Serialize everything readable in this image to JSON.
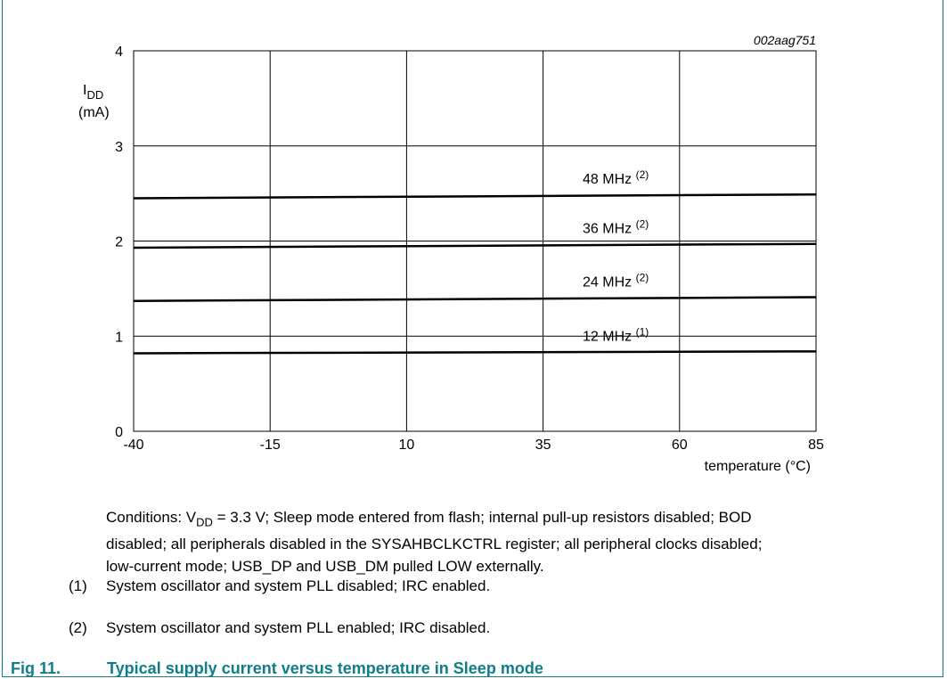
{
  "chart_data": {
    "type": "line",
    "id_label": "002aag751",
    "ylabel_main": "I",
    "ylabel_sub": "DD",
    "ylabel_unit": "(mA)",
    "xlabel": "temperature (°C)",
    "xlim": [
      -40,
      85
    ],
    "ylim": [
      0,
      4
    ],
    "x_ticks": [
      -40,
      -15,
      10,
      35,
      60,
      85
    ],
    "y_ticks": [
      0,
      1,
      2,
      3,
      4
    ],
    "grid": true,
    "series": [
      {
        "name": "48 MHz",
        "note": "(2)",
        "x": [
          -40,
          85
        ],
        "y": [
          2.45,
          2.49
        ]
      },
      {
        "name": "36 MHz",
        "note": "(2)",
        "x": [
          -40,
          85
        ],
        "y": [
          1.93,
          1.97
        ]
      },
      {
        "name": "24 MHz",
        "note": "(2)",
        "x": [
          -40,
          85
        ],
        "y": [
          1.37,
          1.41
        ]
      },
      {
        "name": "12 MHz",
        "note": "(1)",
        "x": [
          -40,
          85
        ],
        "y": [
          0.82,
          0.84
        ]
      }
    ]
  },
  "conditions": {
    "prefix": "Conditions: V",
    "sub": "DD",
    "line1_rest": " = 3.3 V; Sleep mode entered from flash; internal pull-up resistors disabled; BOD",
    "line2": "disabled; all peripherals disabled in the SYSAHBCLKCTRL register; all peripheral clocks disabled;",
    "line3": "low-current mode; USB_DP and USB_DM pulled LOW externally."
  },
  "notes": [
    {
      "num": "(1)",
      "text": "System oscillator and system PLL disabled; IRC enabled."
    },
    {
      "num": "(2)",
      "text": "System oscillator and system PLL enabled; IRC disabled."
    }
  ],
  "caption": {
    "label": "Fig 11.",
    "text": "Typical supply current versus temperature in Sleep mode"
  }
}
